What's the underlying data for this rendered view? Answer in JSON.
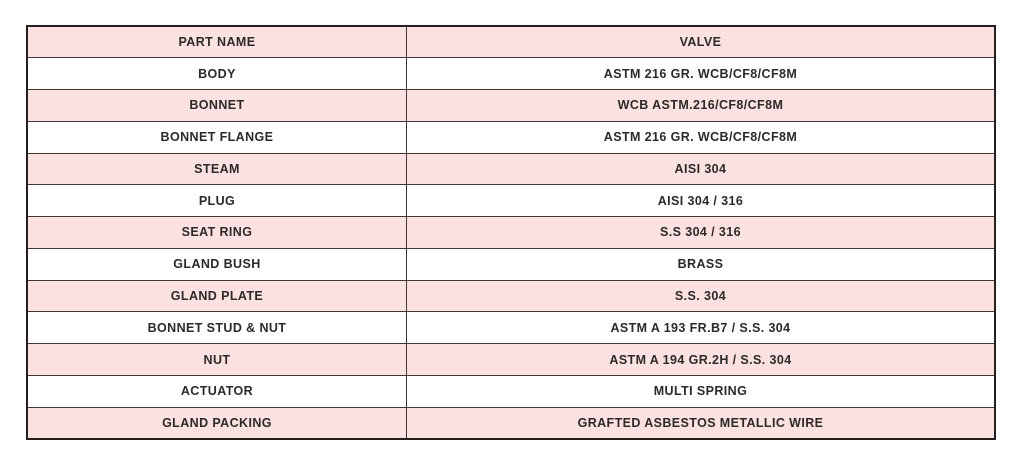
{
  "table": {
    "headers": {
      "part": "PART NAME",
      "value": "VALVE"
    },
    "rows": [
      {
        "part": "BODY",
        "value": "ASTM 216 GR. WCB/CF8/CF8M"
      },
      {
        "part": "BONNET",
        "value": "WCB ASTM.216/CF8/CF8M"
      },
      {
        "part": "BONNET FLANGE",
        "value": "ASTM 216 GR. WCB/CF8/CF8M"
      },
      {
        "part": "STEAM",
        "value": "AISI 304"
      },
      {
        "part": "PLUG",
        "value": "AISI 304 / 316"
      },
      {
        "part": "SEAT RING",
        "value": "S.S 304 / 316"
      },
      {
        "part": "GLAND BUSH",
        "value": "BRASS"
      },
      {
        "part": "GLAND PLATE",
        "value": "S.S. 304"
      },
      {
        "part": "BONNET STUD & NUT",
        "value": "ASTM A 193 FR.B7 / S.S. 304"
      },
      {
        "part": "NUT",
        "value": "ASTM A 194 GR.2H / S.S. 304"
      },
      {
        "part": "ACTUATOR",
        "value": "MULTI SPRING"
      },
      {
        "part": "GLAND PACKING",
        "value": "GRAFTED ASBESTOS METALLIC WIRE"
      }
    ],
    "colors": {
      "row_pink": "#fce1e1",
      "row_white": "#ffffff",
      "border_inner": "#3d3737",
      "border_outer": "#261e1e",
      "text": "#2e2929"
    }
  }
}
